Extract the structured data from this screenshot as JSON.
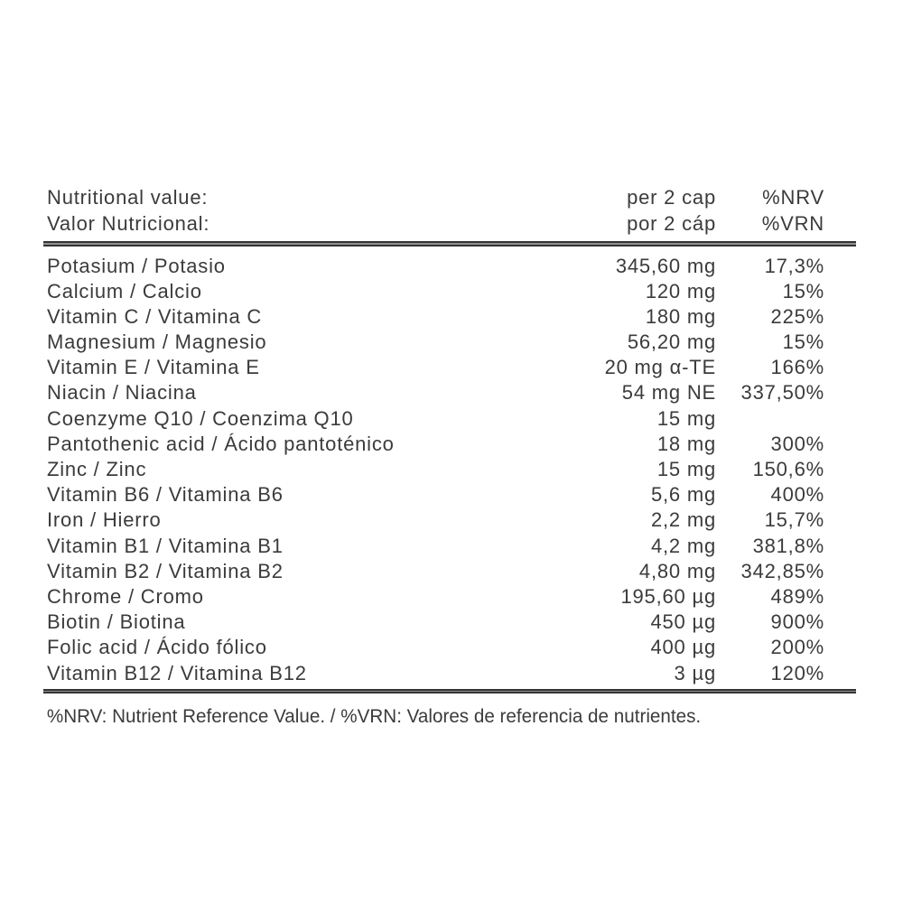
{
  "label": {
    "header": {
      "rows": [
        {
          "name": "Nutritional value:",
          "amount": "per 2 cap",
          "nrv": "%NRV"
        },
        {
          "name": "Valor Nutricional:",
          "amount": "por 2 cáp",
          "nrv": "%VRN"
        }
      ]
    },
    "rows": [
      {
        "name": "Potasium / Potasio",
        "amount": "345,60 mg",
        "nrv": "17,3%"
      },
      {
        "name": "Calcium / Calcio",
        "amount": "120 mg",
        "nrv": "15%"
      },
      {
        "name": "Vitamin C / Vitamina C",
        "amount": "180 mg",
        "nrv": "225%"
      },
      {
        "name": "Magnesium / Magnesio",
        "amount": "56,20 mg",
        "nrv": "15%"
      },
      {
        "name": "Vitamin E / Vitamina E",
        "amount": "20 mg α-TE",
        "nrv": "166%"
      },
      {
        "name": "Niacin / Niacina",
        "amount": "54 mg NE",
        "nrv": "337,50%"
      },
      {
        "name": "Coenzyme Q10 / Coenzima Q10",
        "amount": "15 mg",
        "nrv": ""
      },
      {
        "name": "Pantothenic acid / Ácido pantoténico",
        "amount": "18 mg",
        "nrv": "300%"
      },
      {
        "name": "Zinc / Zinc",
        "amount": "15 mg",
        "nrv": "150,6%"
      },
      {
        "name": "Vitamin B6 / Vitamina B6",
        "amount": "5,6 mg",
        "nrv": "400%"
      },
      {
        "name": "Iron / Hierro",
        "amount": "2,2 mg",
        "nrv": "15,7%"
      },
      {
        "name": "Vitamin B1 / Vitamina B1",
        "amount": "4,2 mg",
        "nrv": "381,8%"
      },
      {
        "name": "Vitamin B2 / Vitamina B2",
        "amount": "4,80 mg",
        "nrv": "342,85%"
      },
      {
        "name": "Chrome / Cromo",
        "amount": "195,60 µg",
        "nrv": "489%"
      },
      {
        "name": "Biotin / Biotina",
        "amount": "450 µg",
        "nrv": "900%"
      },
      {
        "name": "Folic acid / Ácido fólico",
        "amount": "400 µg",
        "nrv": "200%"
      },
      {
        "name": "Vitamin B12 / Vitamina B12",
        "amount": "3 µg",
        "nrv": "120%"
      }
    ],
    "footnote": "%NRV: Nutrient Reference Value. / %VRN: Valores de referencia de nutrientes."
  }
}
